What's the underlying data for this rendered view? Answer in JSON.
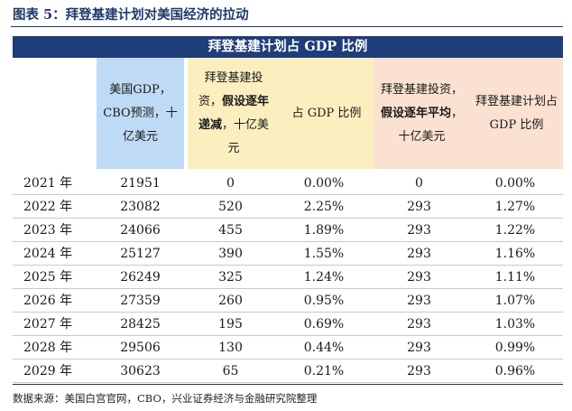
{
  "figure": {
    "title": "图表 5：拜登基建计划对美国经济的拉动",
    "table_title": "拜登基建计划占 GDP 比例",
    "source": "数据来源：美国白宫官网，CBO，兴业证券经济与金融研究院整理"
  },
  "headers": {
    "gdp": "美国GDP，CBO预测，十亿美元",
    "invest_dec_pre": "拜登基建投资，",
    "invest_dec_bold": "假设逐年递减",
    "invest_dec_post": "，十亿美元",
    "share_dec": "占 GDP 比例",
    "invest_avg_pre": "拜登基建投资，",
    "invest_avg_bold": "假设逐年平均",
    "invest_avg_post": "，十亿美元",
    "share_avg": "拜登基建计划占 GDP 比例"
  },
  "rows": [
    {
      "year": "2021 年",
      "gdp": "21951",
      "inv1": "0",
      "pct1": "0.00%",
      "inv2": "0",
      "pct2": "0.00%"
    },
    {
      "year": "2022 年",
      "gdp": "23082",
      "inv1": "520",
      "pct1": "2.25%",
      "inv2": "293",
      "pct2": "1.27%"
    },
    {
      "year": "2023 年",
      "gdp": "24066",
      "inv1": "455",
      "pct1": "1.89%",
      "inv2": "293",
      "pct2": "1.22%"
    },
    {
      "year": "2024 年",
      "gdp": "25127",
      "inv1": "390",
      "pct1": "1.55%",
      "inv2": "293",
      "pct2": "1.16%"
    },
    {
      "year": "2025 年",
      "gdp": "26249",
      "inv1": "325",
      "pct1": "1.24%",
      "inv2": "293",
      "pct2": "1.11%"
    },
    {
      "year": "2026 年",
      "gdp": "27359",
      "inv1": "260",
      "pct1": "0.95%",
      "inv2": "293",
      "pct2": "1.07%"
    },
    {
      "year": "2027 年",
      "gdp": "28425",
      "inv1": "195",
      "pct1": "0.69%",
      "inv2": "293",
      "pct2": "1.03%"
    },
    {
      "year": "2028 年",
      "gdp": "29506",
      "inv1": "130",
      "pct1": "0.44%",
      "inv2": "293",
      "pct2": "0.99%"
    },
    {
      "year": "2029 年",
      "gdp": "30623",
      "inv1": "65",
      "pct1": "0.21%",
      "inv2": "293",
      "pct2": "0.96%"
    }
  ]
}
